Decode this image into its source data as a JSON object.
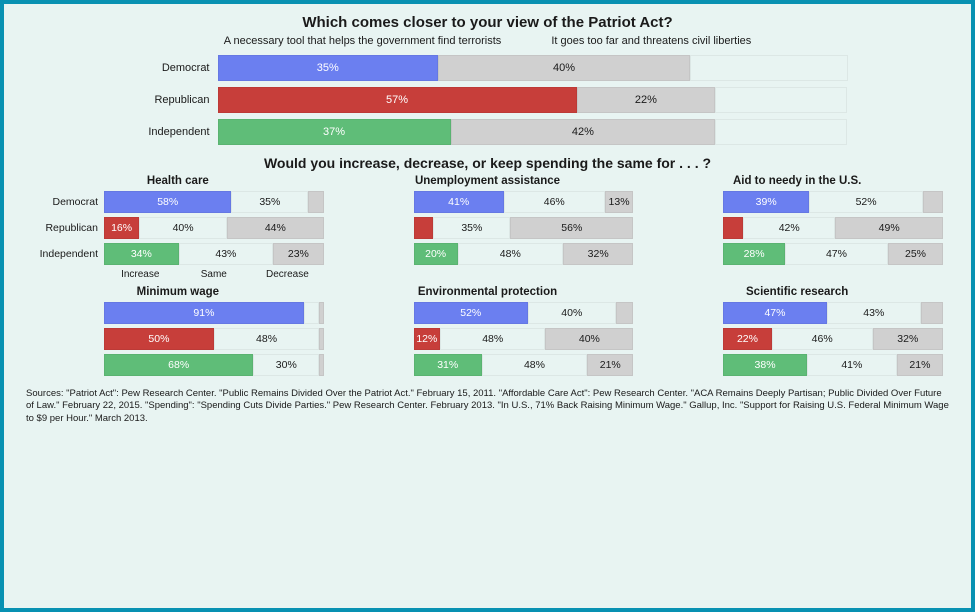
{
  "colors": {
    "democrat": "#6b7ff0",
    "republican": "#c73e3a",
    "independent": "#5fbd78",
    "neutral": "#d0d0d0",
    "light": "#e8f4f2",
    "text_on_color": "#ffffff",
    "text_on_light": "#1a1a1a"
  },
  "patriot": {
    "title": "Which comes closer to your view of the Patriot Act?",
    "legend": {
      "left": "A necessary tool that helps the government find terrorists",
      "right": "It goes too far and threatens civil liberties"
    },
    "groups": [
      "Democrat",
      "Republican",
      "Independent"
    ],
    "rows": [
      {
        "label": "Democrat",
        "color_key": "democrat",
        "values": [
          35,
          40
        ],
        "remainder": 25
      },
      {
        "label": "Republican",
        "color_key": "republican",
        "values": [
          57,
          22
        ],
        "remainder": 21
      },
      {
        "label": "Independent",
        "color_key": "independent",
        "values": [
          37,
          42
        ],
        "remainder": 21
      }
    ]
  },
  "spending": {
    "title": "Would you increase, decrease, or keep spending the same for . . . ?",
    "axis_labels": [
      "Increase",
      "Same",
      "Decrease"
    ],
    "show_row_labels_on_panel_index": 0,
    "show_axis_labels_on_panel_index": 0,
    "panels": [
      {
        "title": "Health care",
        "rows": [
          {
            "label": "Democrat",
            "color_key": "democrat",
            "values": [
              58,
              35,
              7
            ],
            "show": [
              true,
              true,
              false
            ]
          },
          {
            "label": "Republican",
            "color_key": "republican",
            "values": [
              16,
              40,
              44
            ],
            "show": [
              true,
              true,
              true
            ]
          },
          {
            "label": "Independent",
            "color_key": "independent",
            "values": [
              34,
              43,
              23
            ],
            "show": [
              true,
              true,
              true
            ]
          }
        ]
      },
      {
        "title": "Unemployment assistance",
        "rows": [
          {
            "label": "Democrat",
            "color_key": "democrat",
            "values": [
              41,
              46,
              13
            ],
            "show": [
              true,
              true,
              true
            ]
          },
          {
            "label": "Republican",
            "color_key": "republican",
            "values": [
              9,
              35,
              56
            ],
            "show": [
              false,
              true,
              true
            ]
          },
          {
            "label": "Independent",
            "color_key": "independent",
            "values": [
              20,
              48,
              32
            ],
            "show": [
              true,
              true,
              true
            ]
          }
        ]
      },
      {
        "title": "Aid to needy in the U.S.",
        "rows": [
          {
            "label": "Democrat",
            "color_key": "democrat",
            "values": [
              39,
              52,
              9
            ],
            "show": [
              true,
              true,
              false
            ]
          },
          {
            "label": "Republican",
            "color_key": "republican",
            "values": [
              9,
              42,
              49
            ],
            "show": [
              false,
              true,
              true
            ]
          },
          {
            "label": "Independent",
            "color_key": "independent",
            "values": [
              28,
              47,
              25
            ],
            "show": [
              true,
              true,
              true
            ]
          }
        ]
      },
      {
        "title": "Minimum wage",
        "rows": [
          {
            "label": "Democrat",
            "color_key": "democrat",
            "values": [
              91,
              7,
              2
            ],
            "show": [
              true,
              false,
              false
            ]
          },
          {
            "label": "Republican",
            "color_key": "republican",
            "values": [
              50,
              48,
              2
            ],
            "show": [
              true,
              true,
              false
            ]
          },
          {
            "label": "Independent",
            "color_key": "independent",
            "values": [
              68,
              30,
              2
            ],
            "show": [
              true,
              true,
              false
            ]
          }
        ]
      },
      {
        "title": "Environmental protection",
        "rows": [
          {
            "label": "Democrat",
            "color_key": "democrat",
            "values": [
              52,
              40,
              8
            ],
            "show": [
              true,
              true,
              false
            ]
          },
          {
            "label": "Republican",
            "color_key": "republican",
            "values": [
              12,
              48,
              40
            ],
            "show": [
              true,
              true,
              true
            ]
          },
          {
            "label": "Independent",
            "color_key": "independent",
            "values": [
              31,
              48,
              21
            ],
            "show": [
              true,
              true,
              true
            ]
          }
        ]
      },
      {
        "title": "Scientific research",
        "rows": [
          {
            "label": "Democrat",
            "color_key": "democrat",
            "values": [
              47,
              43,
              10
            ],
            "show": [
              true,
              true,
              false
            ]
          },
          {
            "label": "Republican",
            "color_key": "republican",
            "values": [
              22,
              46,
              32
            ],
            "show": [
              true,
              true,
              true
            ]
          },
          {
            "label": "Independent",
            "color_key": "independent",
            "values": [
              38,
              41,
              21
            ],
            "show": [
              true,
              true,
              true
            ]
          }
        ]
      }
    ]
  },
  "sources": "Sources: \"Patriot Act\": Pew Research Center. \"Public Remains Divided Over the Patriot Act.\" February 15, 2011. \"Affordable Care Act\": Pew Research Center. \"ACA Remains Deeply Partisan; Public Divided Over Future of Law.\" February 22, 2015. \"Spending\": \"Spending Cuts Divide Parties.\" Pew Research Center. February 2013. \"In U.S., 71% Back Raising Minimum Wage.\" Gallup, Inc. \"Support for Raising U.S. Federal Minimum Wage to $9 per Hour.\" March 2013."
}
